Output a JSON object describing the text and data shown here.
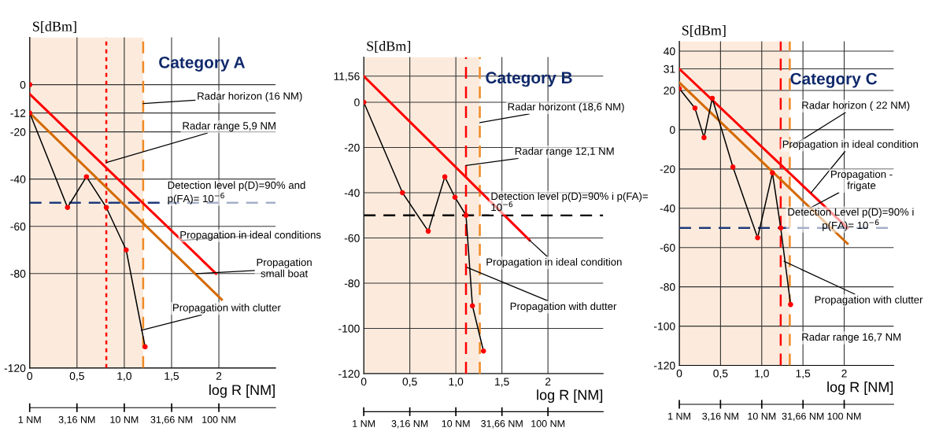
{
  "chart_data": [
    {
      "type": "line",
      "title": "Category A",
      "xlabel": "log R [NM]",
      "ylabel": "S[dBm]",
      "xlim": [
        0,
        2.6
      ],
      "ylim": [
        -120,
        20
      ],
      "xticks": [
        0,
        {
          "value": 0.5,
          "label": "0,5"
        },
        {
          "value": 1.0,
          "label": "1,0"
        },
        {
          "value": 1.5,
          "label": "1,5"
        },
        2
      ],
      "yticks": [
        0,
        -12,
        -20,
        -40,
        -60,
        -80,
        -120
      ],
      "log": "x2",
      "x2lim": [
        1,
        398
      ],
      "x2ticks": [
        {
          "value": 1,
          "label": "1 NM"
        },
        {
          "value": 3.16,
          "label": "3,16 NM"
        },
        {
          "value": 10,
          "label": "10 NM"
        },
        {
          "value": 31.66,
          "label": "31,66 NM"
        },
        {
          "value": 100,
          "label": "100 NM"
        }
      ],
      "grid": true,
      "legend": false,
      "series": [
        {
          "color": "#ff0000",
          "x": [
            0,
            1.97
          ],
          "values": [
            -4,
            -80
          ]
        },
        {
          "color": "#d46a00",
          "x": [
            0,
            2.03
          ],
          "values": [
            -12,
            -91
          ]
        },
        {
          "color": "#000000",
          "marker": "circle",
          "colors": [
            "#ff0000",
            "#ff0000",
            "#ff0000",
            "#ff0000",
            "#ff0000",
            "#ff0000"
          ],
          "x": [
            0,
            0.4,
            0.6,
            0.81,
            1.02,
            1.22
          ],
          "values": [
            -12,
            -52,
            -39,
            -52,
            -70,
            -111
          ]
        },
        {
          "type": "scatter",
          "color": "#ff0000",
          "x": [
            0
          ],
          "values": [
            0
          ]
        }
      ],
      "ref_lines": [
        {
          "axis": "y",
          "value": -50,
          "color": "#1f3a7a",
          "line_style": "dashed"
        },
        {
          "axis": "x",
          "value": 0.81,
          "color": "#ff0000",
          "line_style": "dotted"
        },
        {
          "axis": "x",
          "value": 1.2,
          "color": "#f08a24",
          "line_style": "dashed"
        }
      ],
      "bands": [
        {
          "axis": "x",
          "from": 0,
          "to": 1.2,
          "color": "#fcebdd"
        }
      ],
      "annotations": [
        {
          "text": "Radar horizon (16 NM)",
          "x": 1.2,
          "y": -8
        },
        {
          "text": "Radar range 5,9 NM",
          "x": 0.81,
          "y": -33
        },
        "Detection level p(D)=90% and\np(FA)= 10$^{−6}$",
        {
          "text": "Propagation in ideal conditions",
          "x": 1.6,
          "y": -66
        },
        {
          "text": "Propagation\nsmall boat",
          "x": 1.76,
          "y": -80
        },
        {
          "text": "Propagation with clutter",
          "x": 1.18,
          "y": -104
        }
      ]
    },
    {
      "type": "line",
      "title": "Category B",
      "xlabel": "log R [NM]",
      "ylabel": "S[dBm]",
      "xlim": [
        0,
        2.6
      ],
      "ylim": [
        -120,
        20
      ],
      "xticks": [
        0,
        {
          "value": 0.5,
          "label": "0,5"
        },
        {
          "value": 1.0,
          "label": "1,0"
        },
        {
          "value": 1.5,
          "label": "1,5"
        },
        2
      ],
      "yticks": [
        {
          "value": 11.56,
          "label": "11,56"
        },
        0,
        -20,
        -40,
        -60,
        -80,
        -100,
        -120
      ],
      "log": "x2",
      "x2lim": [
        1,
        398
      ],
      "x2ticks": [
        {
          "value": 1,
          "label": "1 NM"
        },
        {
          "value": 3.16,
          "label": "3,16 NM"
        },
        {
          "value": 10,
          "label": "10 NM"
        },
        {
          "value": 31.66,
          "label": "31,66 NM"
        },
        {
          "value": 100,
          "label": "100 NM"
        }
      ],
      "grid": true,
      "legend": false,
      "series": [
        {
          "color": "#ff0000",
          "x": [
            0,
            1.8
          ],
          "values": [
            11.56,
            -61
          ]
        },
        {
          "color": "#000000",
          "marker": "circle",
          "colors": [
            "#ff0000",
            "#ff0000",
            "#ff0000",
            "#ff0000",
            "#ff0000",
            "#ff0000",
            "#ff0000",
            "#ff0000"
          ],
          "x": [
            0,
            0.42,
            0.7,
            0.88,
            0.99,
            1.11,
            1.18,
            1.3
          ],
          "values": [
            0,
            -40,
            -57,
            -33,
            -42,
            -50,
            -90,
            -110
          ]
        }
      ],
      "ref_lines": [
        {
          "axis": "y",
          "value": -50,
          "color": "#000000",
          "line_style": "dashed"
        },
        {
          "axis": "x",
          "value": 1.11,
          "color": "#ff0000",
          "line_style": "dashed"
        },
        {
          "axis": "x",
          "value": 1.26,
          "color": "#f08a24",
          "line_style": "dashed"
        }
      ],
      "bands": [
        {
          "axis": "x",
          "from": 0,
          "to": 1.26,
          "color": "#fcebdd"
        }
      ],
      "annotations": [
        {
          "text": "Radar horizont (18,6 NM)",
          "x": 1.26,
          "y": -9
        },
        {
          "text": "Radar range 12,1 NM",
          "x": 1.11,
          "y": -28
        },
        "Detection level p(D)=90% i p(FA)=\n10$^{−6}$",
        {
          "text": "Propagation in ideal condition",
          "x": 1.8,
          "y": -61
        },
        {
          "text": "Propagation with dutter",
          "x": 1.12,
          "y": -73
        }
      ]
    },
    {
      "type": "line",
      "title": "Category C",
      "xlabel": "log R [NM]",
      "ylabel": "S[dBm]",
      "xlim": [
        0,
        2.6
      ],
      "ylim": [
        -120,
        45
      ],
      "xticks": [
        0,
        {
          "value": 0.5,
          "label": "0,5"
        },
        {
          "value": 1.0,
          "label": "1,0"
        },
        {
          "value": 1.5,
          "label": "1,5"
        },
        2
      ],
      "yticks": [
        40,
        31,
        20,
        0,
        -20,
        -40,
        -60,
        -80,
        -100,
        -120
      ],
      "log": "x2",
      "x2lim": [
        1,
        398
      ],
      "x2ticks": [
        {
          "value": 1,
          "label": "1 NM"
        },
        {
          "value": 3.16,
          "label": "3,16 NM"
        },
        {
          "value": 10,
          "label": "10 NM"
        },
        {
          "value": 31.66,
          "label": "31,66 NM"
        },
        {
          "value": 100,
          "label": "100 NM"
        }
      ],
      "grid": true,
      "legend": false,
      "series": [
        {
          "color": "#ff0000",
          "x": [
            0,
            2.04
          ],
          "values": [
            31,
            -50
          ]
        },
        {
          "color": "#d46a00",
          "x": [
            0,
            2.04
          ],
          "values": [
            24,
            -58
          ]
        },
        {
          "color": "#000000",
          "marker": "circle",
          "colors": [
            "#ff0000",
            "#ff0000",
            "#ff0000",
            "#ff0000",
            "#ff0000",
            "#ff0000",
            "#ff0000",
            "#ff0000",
            "#ff0000"
          ],
          "x": [
            0,
            0.19,
            0.3,
            0.4,
            0.65,
            0.95,
            1.13,
            1.23,
            1.35
          ],
          "values": [
            21,
            11,
            -4,
            16,
            -19,
            -55,
            -22,
            -50,
            -89
          ]
        }
      ],
      "ref_lines": [
        {
          "axis": "y",
          "value": -50,
          "color": "#1f3a7a",
          "line_style": "dashed"
        },
        {
          "axis": "x",
          "value": 1.23,
          "color": "#ff0000",
          "line_style": "dashed"
        },
        {
          "axis": "x",
          "value": 1.34,
          "color": "#f08a24",
          "line_style": "dashed"
        }
      ],
      "bands": [
        {
          "axis": "x",
          "from": 0,
          "to": 1.34,
          "color": "#fcebdd"
        }
      ],
      "annotations": [
        {
          "text": "Radar horizon ( 22 NM)",
          "x": 1.34,
          "y": -9
        },
        {
          "text": "Propagation in ideal condition",
          "x": 1.6,
          "y": -32
        },
        {
          "text": "Propagation -\nfrigate",
          "x": 1.58,
          "y": -40
        },
        "Detection Level p(D)=90% i\np(FA)= 10$^{−6}$",
        {
          "text": "Propagation with clutter",
          "x": 1.27,
          "y": -67
        },
        "Radar range 16,7 NM"
      ]
    }
  ]
}
